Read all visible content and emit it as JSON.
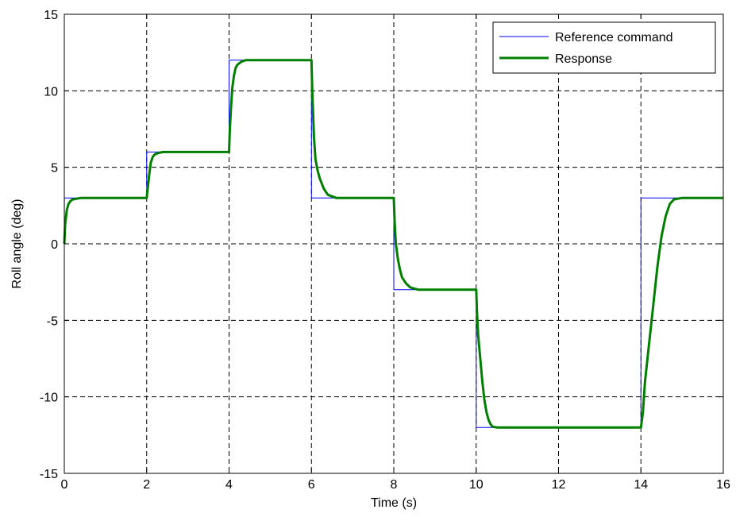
{
  "chart_data": {
    "type": "line",
    "title": "",
    "xlabel": "Time (s)",
    "ylabel": "Roll angle (deg)",
    "xlim": [
      0,
      16
    ],
    "ylim": [
      -15,
      15
    ],
    "xticks": [
      0,
      2,
      4,
      6,
      8,
      10,
      12,
      14,
      16
    ],
    "yticks": [
      -15,
      -10,
      -5,
      0,
      5,
      10,
      15
    ],
    "xtick_labels": [
      "0",
      "2",
      "4",
      "6",
      "8",
      "10",
      "12",
      "14",
      "16"
    ],
    "ytick_labels": [
      "-15",
      "-10",
      "-5",
      "0",
      "5",
      "10",
      "15"
    ],
    "grid": true,
    "grid_style": "dashed",
    "legend_position": "top-right",
    "series": [
      {
        "name": "Reference command",
        "color": "#0000ff",
        "style": "thin",
        "x": [
          0,
          0.001,
          2,
          2,
          4,
          4,
          6,
          6,
          8,
          8,
          10,
          10,
          14,
          14,
          16
        ],
        "y": [
          0,
          3,
          3,
          6,
          6,
          12,
          12,
          3,
          3,
          -3,
          -3,
          -12,
          -12,
          3,
          3
        ]
      },
      {
        "name": "Response",
        "color": "#007f00",
        "style": "thick",
        "x": [
          0,
          0.02,
          0.06,
          0.1,
          0.15,
          0.2,
          0.3,
          0.4,
          0.6,
          1.0,
          1.5,
          2.0,
          2.02,
          2.06,
          2.1,
          2.15,
          2.2,
          2.3,
          2.4,
          2.6,
          3.0,
          3.5,
          4.0,
          4.02,
          4.05,
          4.08,
          4.12,
          4.16,
          4.2,
          4.3,
          4.4,
          4.5,
          4.7,
          5.0,
          5.5,
          6.0,
          6.02,
          6.06,
          6.1,
          6.15,
          6.2,
          6.3,
          6.4,
          6.6,
          6.8,
          7.0,
          7.5,
          8.0,
          8.02,
          8.05,
          8.1,
          8.15,
          8.2,
          8.3,
          8.4,
          8.6,
          8.8,
          9.0,
          9.5,
          10.0,
          10.02,
          10.05,
          10.1,
          10.15,
          10.2,
          10.25,
          10.3,
          10.35,
          10.4,
          10.5,
          10.7,
          11.0,
          12.0,
          13.0,
          14.0,
          14.05,
          14.1,
          14.2,
          14.3,
          14.4,
          14.5,
          14.6,
          14.7,
          14.8,
          15.0,
          15.5,
          16.0
        ],
        "y": [
          0,
          1.2,
          2.2,
          2.6,
          2.8,
          2.9,
          2.95,
          3.0,
          3.0,
          3.0,
          3.0,
          3.0,
          3.5,
          4.5,
          5.3,
          5.7,
          5.85,
          5.95,
          6.0,
          6.0,
          6.0,
          6.0,
          6.0,
          7.5,
          9.0,
          10.2,
          11.0,
          11.5,
          11.7,
          11.9,
          12.0,
          12.0,
          12.0,
          12.0,
          12.0,
          12.0,
          10.0,
          7.0,
          5.5,
          4.8,
          4.3,
          3.6,
          3.2,
          3.0,
          3.0,
          3.0,
          3.0,
          3.0,
          1.5,
          0.0,
          -1.0,
          -1.7,
          -2.2,
          -2.6,
          -2.85,
          -3.0,
          -3.0,
          -3.0,
          -3.0,
          -3.0,
          -4.5,
          -6.0,
          -7.5,
          -9.0,
          -10.2,
          -11.0,
          -11.5,
          -11.8,
          -11.95,
          -12.0,
          -12.0,
          -12.0,
          -12.0,
          -12.0,
          -12.0,
          -11.0,
          -9.0,
          -6.5,
          -4.0,
          -1.5,
          0.5,
          1.8,
          2.6,
          2.9,
          3.0,
          3.0,
          3.0
        ]
      }
    ]
  }
}
